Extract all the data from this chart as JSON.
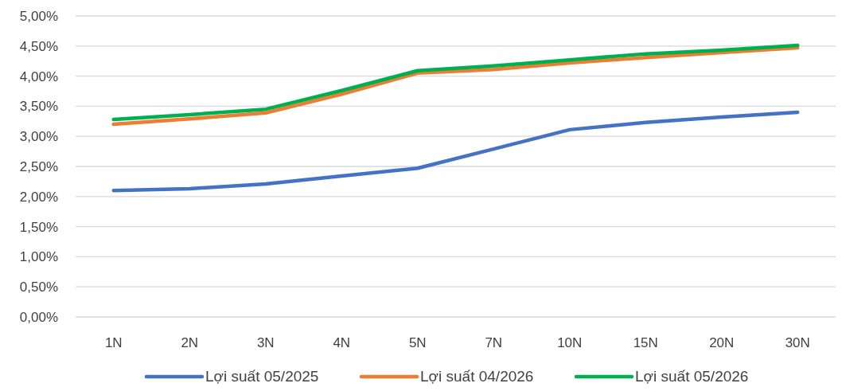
{
  "chart_data": {
    "type": "line",
    "categories": [
      "1N",
      "2N",
      "3N",
      "4N",
      "5N",
      "7N",
      "10N",
      "15N",
      "20N",
      "30N"
    ],
    "series": [
      {
        "name": "Lợi suất 05/2025",
        "color": "#4472c4",
        "values": [
          2.1,
          2.13,
          2.21,
          2.34,
          2.47,
          2.79,
          3.11,
          3.23,
          3.32,
          3.4
        ]
      },
      {
        "name": "Lợi suất 04/2026",
        "color": "#ed7d31",
        "values": [
          3.2,
          3.29,
          3.39,
          3.7,
          4.05,
          4.11,
          4.22,
          4.31,
          4.39,
          4.47
        ]
      },
      {
        "name": "Lợi suất 05/2026",
        "color": "#00b050",
        "values": [
          3.28,
          3.36,
          3.45,
          3.76,
          4.09,
          4.17,
          4.27,
          4.37,
          4.43,
          4.51
        ]
      }
    ],
    "ylim": [
      0,
      5
    ],
    "yticks": [
      {
        "value": 0,
        "label": "0,00%"
      },
      {
        "value": 0.5,
        "label": "0,50%"
      },
      {
        "value": 1,
        "label": "1,00%"
      },
      {
        "value": 1.5,
        "label": "1,50%"
      },
      {
        "value": 2,
        "label": "2,00%"
      },
      {
        "value": 2.5,
        "label": "2,50%"
      },
      {
        "value": 3,
        "label": "3,00%"
      },
      {
        "value": 3.5,
        "label": "3,50%"
      },
      {
        "value": 4,
        "label": "4,00%"
      },
      {
        "value": 4.5,
        "label": "4,50%"
      },
      {
        "value": 5,
        "label": "5,00%"
      }
    ],
    "grid": "y",
    "legend": "bottom",
    "marker": "none",
    "line_style": "solid"
  }
}
